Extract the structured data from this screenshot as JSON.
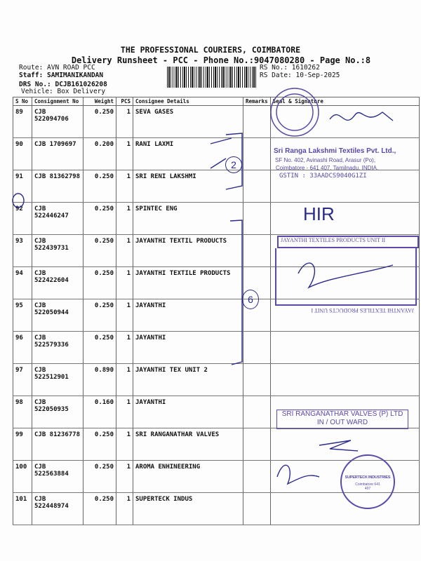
{
  "header": {
    "title": "THE PROFESSIONAL COURIERS, COIMBATORE",
    "subtitle": "Delivery Runsheet - PCC - Phone No.:9047080280 - Page No.:8",
    "route": "Route: AVN ROAD PCC",
    "staff": "Staff: SAMIMANIKANDAN",
    "drs": "DRS No.: DCJB161026208",
    "vehicle": "Vehicle: Box Delivery",
    "rs_no": "RS No.: 1610262",
    "rs_date": "RS Date: 10-Sep-2025"
  },
  "table": {
    "columns": [
      "S No",
      "Consignment No",
      "Weight",
      "PCS",
      "Consignee Details",
      "Remarks",
      "Seal & Signature"
    ],
    "rows": [
      {
        "sno": "89",
        "cn": "CJB 522094706",
        "weight": "0.250",
        "pcs": "1",
        "consignee": "SEVA GASES"
      },
      {
        "sno": "90",
        "cn": "CJB 1709697",
        "weight": "0.200",
        "pcs": "1",
        "consignee": "RANI LAXMI"
      },
      {
        "sno": "91",
        "cn": "CJB 81362798",
        "weight": "0.250",
        "pcs": "1",
        "consignee": "SRI RENI LAKSHMI"
      },
      {
        "sno": "92",
        "cn": "CJB 522446247",
        "weight": "0.250",
        "pcs": "1",
        "consignee": "SPINTEC ENG"
      },
      {
        "sno": "93",
        "cn": "CJB 522439731",
        "weight": "0.250",
        "pcs": "1",
        "consignee": "JAYANTHI TEXTIL PRODUCTS"
      },
      {
        "sno": "94",
        "cn": "CJB 522422604",
        "weight": "0.250",
        "pcs": "1",
        "consignee": "JAYANTHI TEXTILE PRODUCTS"
      },
      {
        "sno": "95",
        "cn": "CJB 522050944",
        "weight": "0.250",
        "pcs": "1",
        "consignee": "JAYANTHI"
      },
      {
        "sno": "96",
        "cn": "CJB 522579336",
        "weight": "0.250",
        "pcs": "1",
        "consignee": "JAYANTHI"
      },
      {
        "sno": "97",
        "cn": "CJB 522512901",
        "weight": "0.890",
        "pcs": "1",
        "consignee": "JAYANTHI TEX UNIT 2"
      },
      {
        "sno": "98",
        "cn": "CJB 522050935",
        "weight": "0.160",
        "pcs": "1",
        "consignee": "JAYANTHI"
      },
      {
        "sno": "99",
        "cn": "CJB 81236778",
        "weight": "0.250",
        "pcs": "1",
        "consignee": "SRI RANGANATHAR VALVES"
      },
      {
        "sno": "100",
        "cn": "CJB 522563884",
        "weight": "0.250",
        "pcs": "1",
        "consignee": "AROMA ENHINEERING"
      },
      {
        "sno": "101",
        "cn": "CJB 522448974",
        "weight": "0.250",
        "pcs": "1",
        "consignee": "SUPERTECK INDUS"
      }
    ]
  },
  "annotations": {
    "bracket_mark_1": "2",
    "bracket_mark_2": "6",
    "handwritten_hir": "HIR"
  },
  "stamps": {
    "textiles_line1": "Sri Ranga Lakshmi Textiles Pvt. Ltd.,",
    "textiles_line2": "SF No. 402, Avinashi Road, Arasur (Po),",
    "textiles_line3": "Coimbatore - 641 407. Tamilnadu, INDIA.",
    "textiles_gstin": "GSTIN : 33AADCS9040G1ZI",
    "jayanthi_top": "JAYANTHI TEXTILES PRODUCTS UNIT II",
    "jayanthi_bottom": "JAYANTHI TEXTILES PRODUCTS UNIT I",
    "ranganathar_line1": "SRI RANGANATHAR VALVES (P) LTD",
    "ranganathar_line2": "IN / OUT WARD",
    "superteck": "SUPERTECK INDUSTRIES",
    "superteck_city": "Coimbatore 641 407"
  },
  "colors": {
    "ink": "#2a2a8c",
    "stamp": "#5b48a8"
  }
}
